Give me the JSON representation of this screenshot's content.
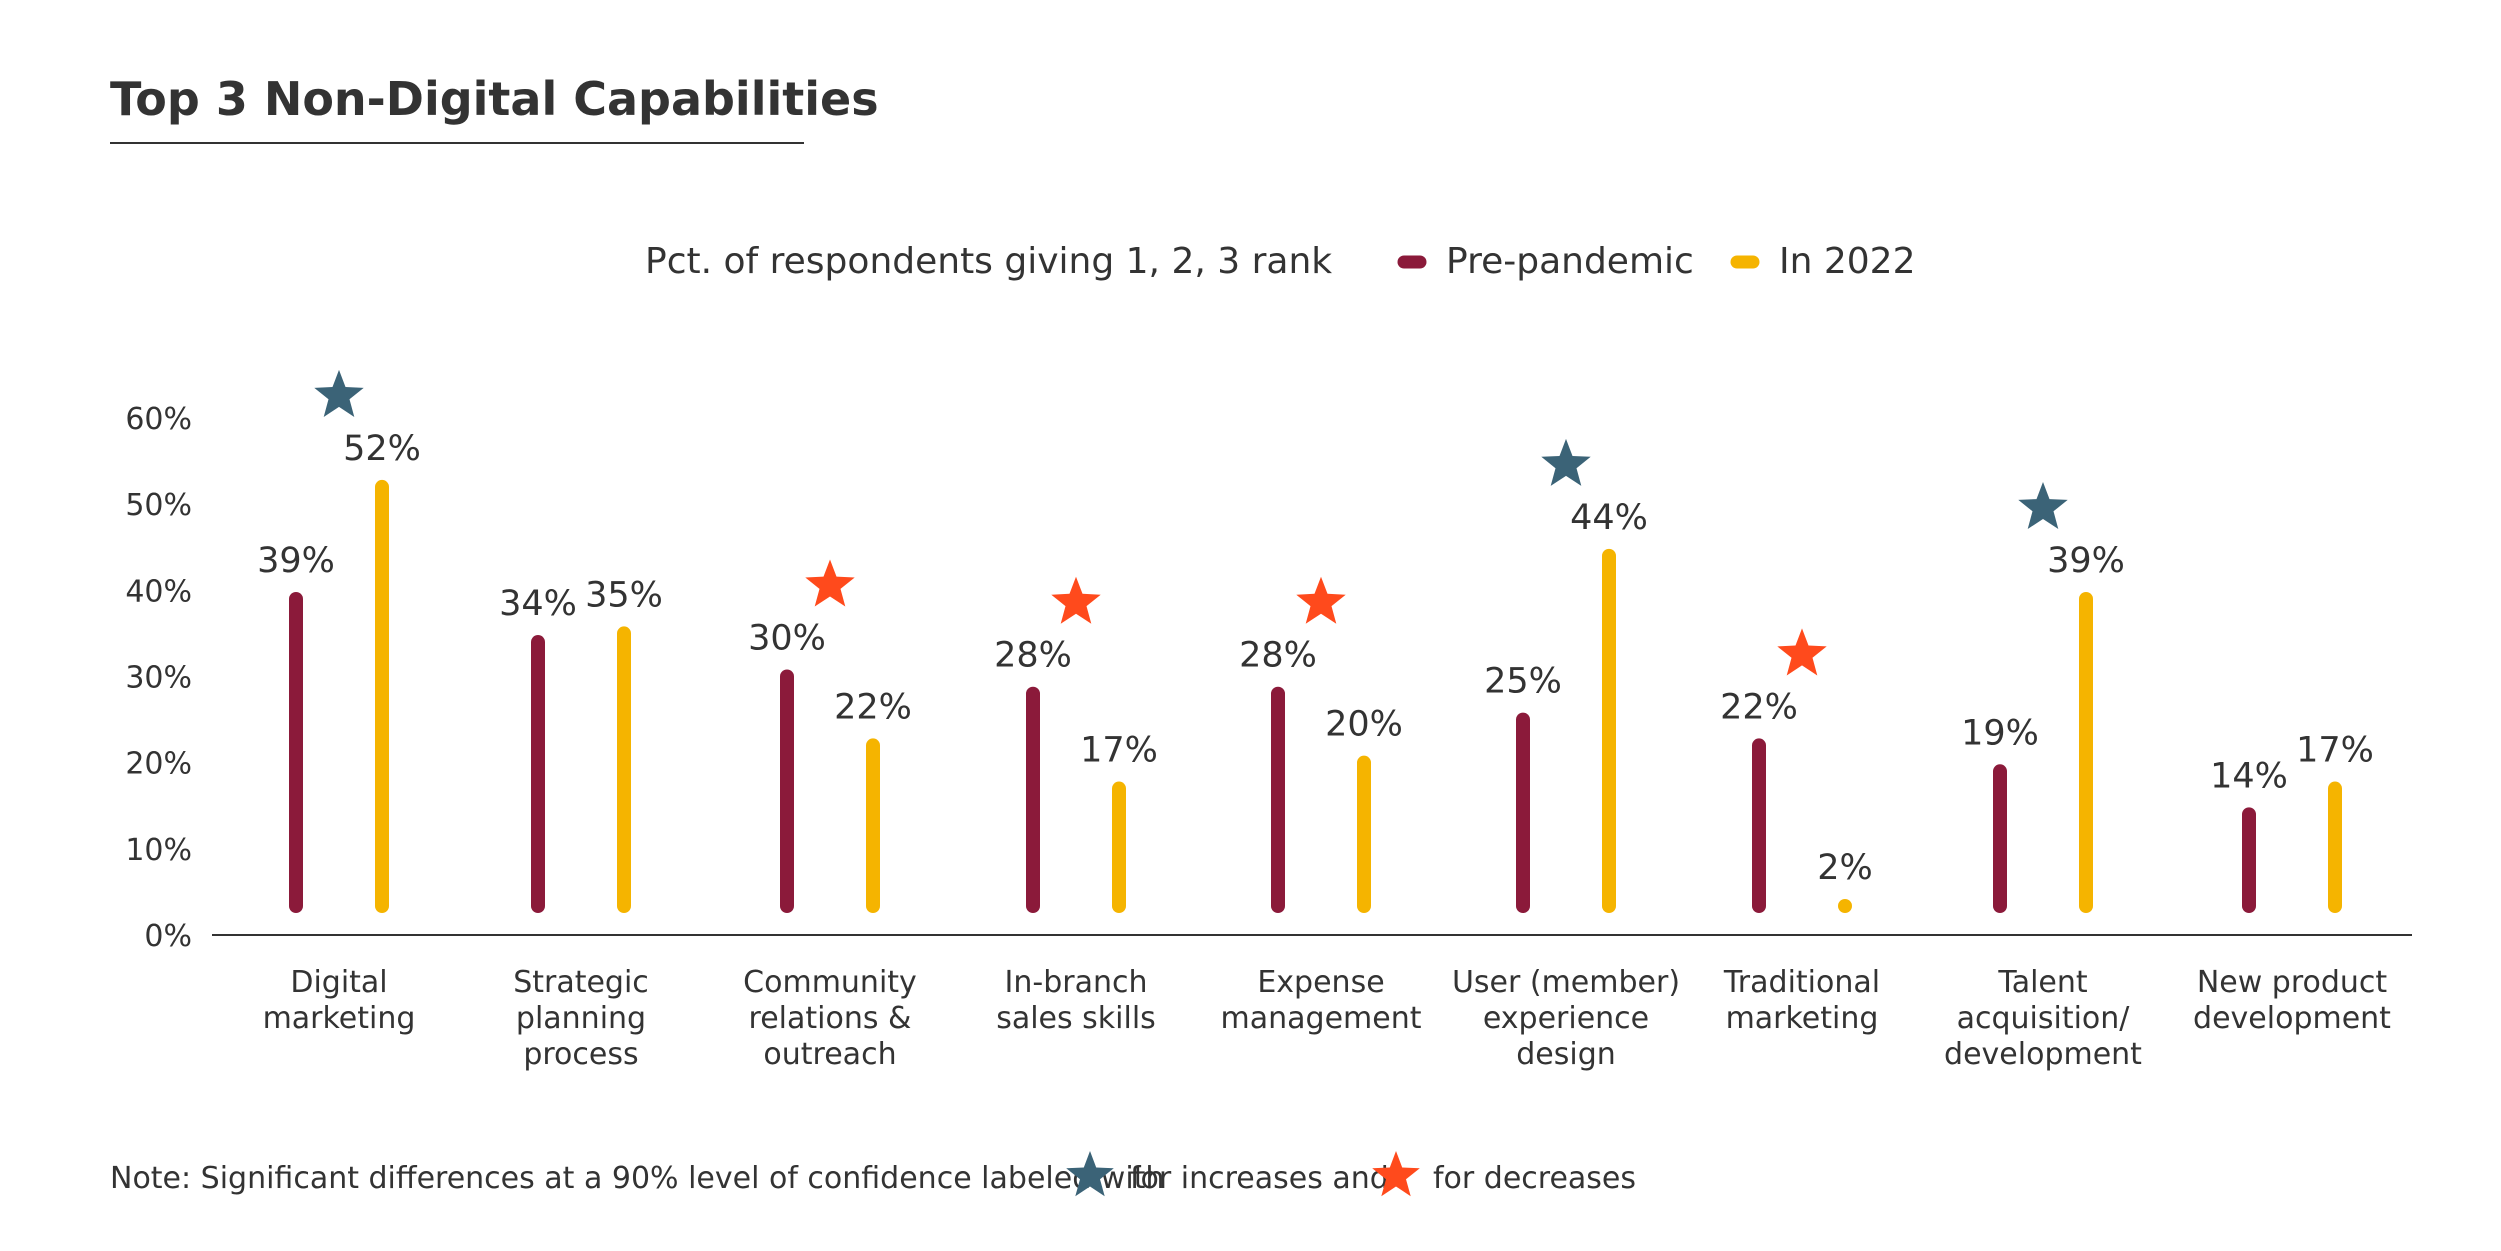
{
  "colors": {
    "text": "#333333",
    "pre_pandemic": "#8B1A3A",
    "in_2022": "#F5B400",
    "increase_star": "#3B6377",
    "decrease_star": "#FF4A1C",
    "axis": "#333333",
    "title_rule": "#333333"
  },
  "chart_data": {
    "type": "bar",
    "title": "Top 3 Non-Digital Capabilities",
    "subtitle": "Pct. of respondents giving 1, 2, 3 rank",
    "xlabel": "",
    "ylabel": "",
    "ylim": [
      0,
      60
    ],
    "y_ticks": [
      0,
      10,
      20,
      30,
      40,
      50,
      60
    ],
    "y_tick_labels": [
      "0%",
      "10%",
      "20%",
      "30%",
      "40%",
      "50%",
      "60%"
    ],
    "legend_position": "top",
    "grid": false,
    "categories": [
      "Digital marketing",
      "Strategic planning process",
      "Community relations & outreach",
      "In-branch sales skills",
      "Expense management",
      "User (member) experience design",
      "Traditional marketing",
      "Talent acquisition/ development",
      "New product development"
    ],
    "category_label_lines": [
      [
        "Digital",
        "marketing"
      ],
      [
        "Strategic",
        "planning",
        "process"
      ],
      [
        "Community",
        "relations &",
        "outreach"
      ],
      [
        "In-branch",
        "sales skills"
      ],
      [
        "Expense",
        "management"
      ],
      [
        "User (member)",
        "experience",
        "design"
      ],
      [
        "Traditional",
        "marketing"
      ],
      [
        "Talent",
        "acquisition/",
        "development"
      ],
      [
        "New product",
        "development"
      ]
    ],
    "series": [
      {
        "name": "Pre-pandemic",
        "color": "#8B1A3A",
        "values": [
          39,
          34,
          30,
          28,
          28,
          25,
          22,
          19,
          14
        ],
        "labels": [
          "39%",
          "34%",
          "30%",
          "28%",
          "28%",
          "25%",
          "22%",
          "19%",
          "14%"
        ]
      },
      {
        "name": "In 2022",
        "color": "#F5B400",
        "values": [
          52,
          35,
          22,
          17,
          20,
          44,
          2,
          39,
          17
        ],
        "labels": [
          "52%",
          "35%",
          "22%",
          "17%",
          "20%",
          "44%",
          "2%",
          "39%",
          "17%"
        ]
      }
    ],
    "significance": [
      "increase",
      "none",
      "decrease",
      "decrease",
      "decrease",
      "increase",
      "decrease",
      "increase",
      "none"
    ],
    "note": {
      "prefix": "Note: Significant differences at a 90% level of confidence labeled with",
      "middle": "for increases and",
      "suffix": "for decreases"
    }
  }
}
